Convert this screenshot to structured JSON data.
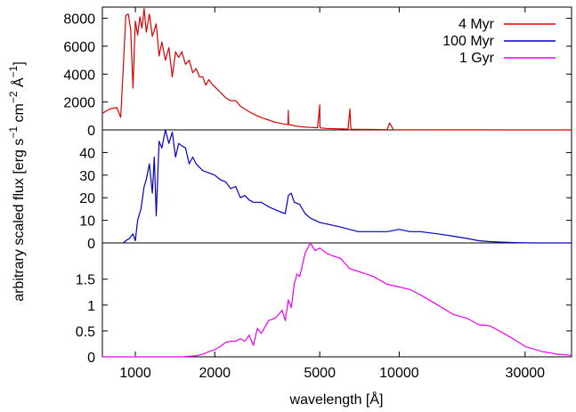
{
  "chart_data": {
    "type": "line",
    "xlabel": "wavelength [Å]",
    "ylabel": "arbitrary scaled flux [erg s",
    "ylabel_parts": {
      "a": "arbitrary scaled flux [erg s",
      "a_sup": "−1",
      "b": " cm",
      "b_sup": "−2",
      "c": " Å",
      "c_sup": "−1",
      "d": "]"
    },
    "x_scale": "log",
    "xlim": [
      750,
      45000
    ],
    "x_ticks": [
      1000,
      2000,
      5000,
      10000,
      30000
    ],
    "x_tick_labels": [
      "1000",
      "2000",
      "5000",
      "10000",
      "30000"
    ],
    "legend_position": "top-right",
    "panels": [
      {
        "name": "4 Myr",
        "color": "#dd0000",
        "ylim": [
          0,
          8800
        ],
        "y_ticks": [
          0,
          2000,
          4000,
          6000,
          8000
        ],
        "y_tick_labels": [
          "0",
          "2000",
          "4000",
          "6000",
          "8000"
        ],
        "x": [
          750,
          800,
          850,
          880,
          900,
          920,
          940,
          960,
          980,
          1000,
          1020,
          1040,
          1060,
          1080,
          1100,
          1130,
          1160,
          1200,
          1230,
          1260,
          1300,
          1340,
          1380,
          1420,
          1460,
          1500,
          1550,
          1600,
          1650,
          1700,
          1750,
          1800,
          1850,
          1900,
          1950,
          2000,
          2100,
          2200,
          2300,
          2400,
          2500,
          2700,
          2900,
          3100,
          3400,
          3700,
          3790,
          3800,
          3810,
          3900,
          4000,
          4300,
          4600,
          4900,
          4950,
          5000,
          5010,
          5050,
          5300,
          5800,
          6400,
          6500,
          6560,
          6570,
          6600,
          7000,
          8000,
          9000,
          9200,
          9500,
          10000,
          12000,
          14000,
          16000,
          20000,
          25000,
          30000,
          38000,
          45000
        ],
        "y": [
          1200,
          1500,
          1600,
          900,
          4500,
          8200,
          8300,
          7200,
          3000,
          7800,
          6800,
          8100,
          7300,
          8700,
          7000,
          8300,
          6700,
          7600,
          5300,
          6300,
          5000,
          5900,
          3800,
          5600,
          5200,
          5600,
          4700,
          5000,
          4100,
          4400,
          3800,
          3800,
          3200,
          3600,
          3300,
          3100,
          2700,
          2300,
          2100,
          2100,
          1700,
          1300,
          1000,
          800,
          550,
          400,
          380,
          1400,
          380,
          350,
          300,
          220,
          180,
          150,
          900,
          1800,
          200,
          140,
          110,
          80,
          60,
          1500,
          100,
          60,
          50,
          40,
          30,
          20,
          500,
          20,
          15,
          10,
          7,
          5,
          4,
          3,
          2,
          1,
          1
        ]
      },
      {
        "name": "100 Myr",
        "color": "#0000cc",
        "ylim": [
          0,
          50
        ],
        "y_ticks": [
          0,
          10,
          20,
          30,
          40
        ],
        "y_tick_labels": [
          "0",
          "10",
          "20",
          "30",
          "40"
        ],
        "x": [
          900,
          920,
          950,
          980,
          1000,
          1020,
          1050,
          1080,
          1100,
          1130,
          1160,
          1180,
          1200,
          1230,
          1260,
          1300,
          1340,
          1380,
          1420,
          1460,
          1500,
          1550,
          1600,
          1650,
          1700,
          1800,
          1900,
          2000,
          2100,
          2200,
          2300,
          2400,
          2500,
          2600,
          2700,
          2800,
          3000,
          3200,
          3500,
          3700,
          3800,
          3900,
          4000,
          4200,
          4400,
          4600,
          5000,
          5500,
          6000,
          7000,
          8000,
          9000,
          10000,
          11000,
          12000,
          14000,
          16000,
          18000,
          20000,
          22000,
          25000,
          28000,
          30000,
          35000,
          40000,
          45000
        ],
        "y": [
          0,
          1,
          2,
          4,
          1,
          10,
          15,
          25,
          28,
          35,
          22,
          38,
          12,
          45,
          42,
          50,
          44,
          49,
          38,
          44,
          43,
          42,
          35,
          38,
          35,
          32,
          31,
          30,
          28,
          27,
          24,
          25,
          20,
          21,
          19,
          18,
          18,
          16,
          14,
          13,
          21,
          22,
          18,
          17,
          13,
          11,
          9,
          8,
          7,
          5,
          5,
          5,
          6,
          5,
          5,
          4,
          3,
          2,
          1,
          0.6,
          0.3,
          0.1,
          0.05,
          0,
          0,
          0
        ]
      },
      {
        "name": "1 Gyr",
        "color": "#ee00ee",
        "ylim": [
          0,
          2.2
        ],
        "y_ticks": [
          0,
          0.5,
          1,
          1.5
        ],
        "y_tick_labels": [
          "0",
          "0.5",
          "1",
          "1.5"
        ],
        "x": [
          750,
          1500,
          1700,
          1800,
          1900,
          2000,
          2100,
          2200,
          2300,
          2400,
          2500,
          2600,
          2700,
          2800,
          2900,
          3000,
          3200,
          3400,
          3600,
          3700,
          3800,
          3900,
          4000,
          4100,
          4200,
          4400,
          4600,
          4800,
          5000,
          5300,
          5600,
          6000,
          6500,
          7000,
          7500,
          8000,
          9000,
          10000,
          11000,
          12000,
          14000,
          16000,
          18000,
          20000,
          22000,
          25000,
          28000,
          30000,
          35000,
          40000,
          45000
        ],
        "y": [
          0,
          0,
          0.02,
          0.05,
          0.1,
          0.14,
          0.2,
          0.28,
          0.3,
          0.3,
          0.35,
          0.3,
          0.42,
          0.22,
          0.55,
          0.45,
          0.7,
          0.75,
          0.9,
          0.7,
          1.1,
          0.95,
          1.4,
          1.6,
          1.55,
          2.0,
          2.2,
          2.05,
          2.1,
          2.0,
          1.95,
          1.9,
          1.7,
          1.65,
          1.6,
          1.55,
          1.4,
          1.35,
          1.3,
          1.2,
          1.0,
          0.82,
          0.75,
          0.62,
          0.6,
          0.45,
          0.3,
          0.2,
          0.1,
          0.05,
          0.03
        ]
      }
    ]
  }
}
